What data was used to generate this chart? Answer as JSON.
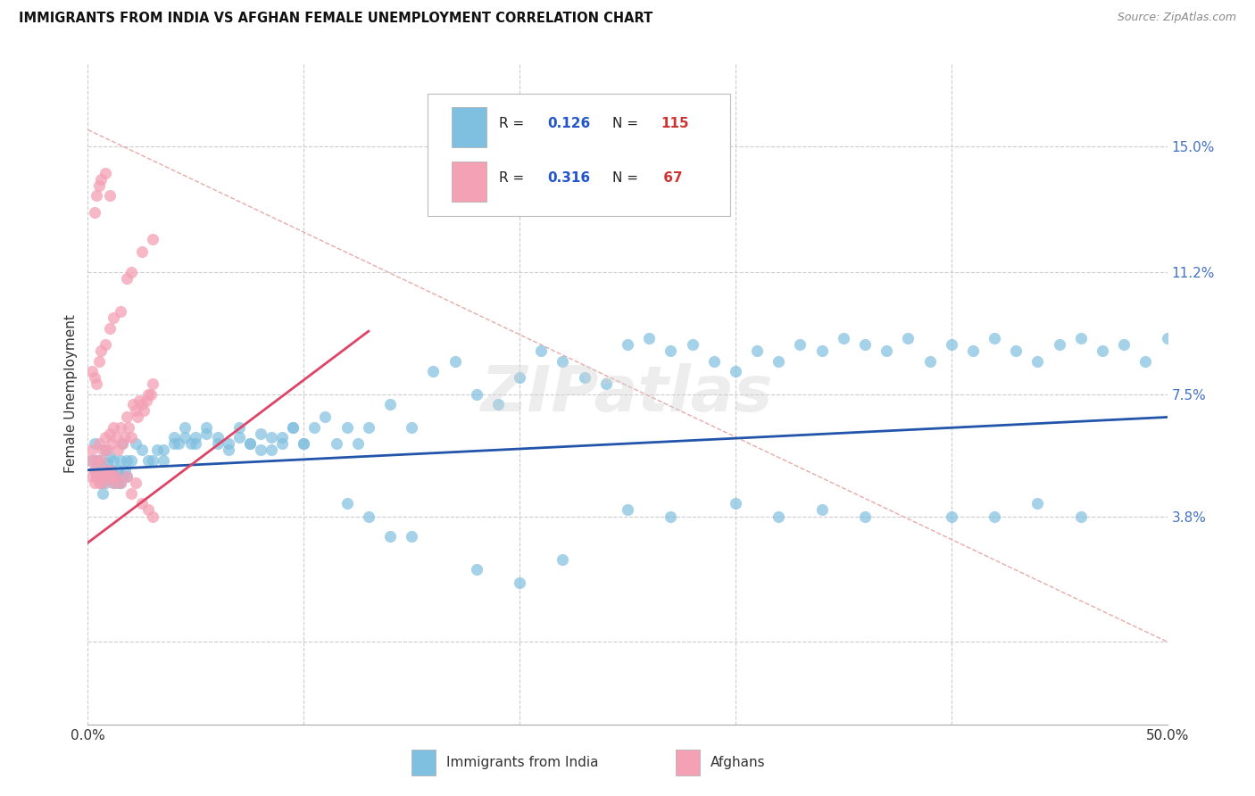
{
  "title": "IMMIGRANTS FROM INDIA VS AFGHAN FEMALE UNEMPLOYMENT CORRELATION CHART",
  "source": "Source: ZipAtlas.com",
  "ylabel": "Female Unemployment",
  "right_yticklabels": [
    "",
    "3.8%",
    "7.5%",
    "11.2%",
    "15.0%"
  ],
  "right_ytick_vals": [
    0.0,
    0.038,
    0.075,
    0.112,
    0.15
  ],
  "xlim": [
    0.0,
    0.5
  ],
  "ylim": [
    -0.025,
    0.175
  ],
  "legend_label1": "Immigrants from India",
  "legend_label2": "Afghans",
  "blue_color": "#7FBFDF",
  "pink_color": "#F4A0B5",
  "blue_line_color": "#2255AA",
  "pink_line_color": "#DD4466",
  "diag_color": "#E8AAAA",
  "trendline_blue": [
    [
      0.0,
      0.052
    ],
    [
      0.5,
      0.068
    ]
  ],
  "trendline_pink": [
    [
      0.0,
      0.03
    ],
    [
      0.13,
      0.094
    ]
  ],
  "diag_line": [
    [
      0.0,
      0.155
    ],
    [
      0.5,
      0.0
    ]
  ],
  "india_x": [
    0.002,
    0.003,
    0.004,
    0.005,
    0.006,
    0.007,
    0.008,
    0.009,
    0.01,
    0.011,
    0.012,
    0.013,
    0.014,
    0.015,
    0.016,
    0.018,
    0.02,
    0.022,
    0.025,
    0.028,
    0.03,
    0.032,
    0.003,
    0.004,
    0.005,
    0.006,
    0.007,
    0.008,
    0.009,
    0.01,
    0.011,
    0.012,
    0.013,
    0.014,
    0.015,
    0.016,
    0.017,
    0.018,
    0.035,
    0.04,
    0.045,
    0.05,
    0.055,
    0.06,
    0.065,
    0.07,
    0.075,
    0.08,
    0.085,
    0.09,
    0.095,
    0.1,
    0.035,
    0.04,
    0.042,
    0.045,
    0.048,
    0.05,
    0.055,
    0.06,
    0.065,
    0.07,
    0.075,
    0.08,
    0.085,
    0.09,
    0.095,
    0.1,
    0.105,
    0.11,
    0.115,
    0.12,
    0.125,
    0.13,
    0.14,
    0.15,
    0.16,
    0.17,
    0.18,
    0.19,
    0.2,
    0.21,
    0.22,
    0.23,
    0.24,
    0.25,
    0.26,
    0.27,
    0.28,
    0.29,
    0.3,
    0.31,
    0.32,
    0.33,
    0.34,
    0.35,
    0.36,
    0.37,
    0.38,
    0.39,
    0.4,
    0.41,
    0.42,
    0.43,
    0.44,
    0.45,
    0.46,
    0.47,
    0.48,
    0.49,
    0.5,
    0.25,
    0.27,
    0.3,
    0.32,
    0.34,
    0.36,
    0.15,
    0.18,
    0.2,
    0.22,
    0.12,
    0.13,
    0.14,
    0.4,
    0.42,
    0.44,
    0.46
  ],
  "india_y": [
    0.055,
    0.052,
    0.05,
    0.055,
    0.05,
    0.053,
    0.058,
    0.054,
    0.056,
    0.052,
    0.055,
    0.05,
    0.048,
    0.055,
    0.06,
    0.055,
    0.055,
    0.06,
    0.058,
    0.055,
    0.055,
    0.058,
    0.06,
    0.055,
    0.05,
    0.048,
    0.045,
    0.048,
    0.05,
    0.052,
    0.05,
    0.048,
    0.05,
    0.052,
    0.048,
    0.05,
    0.052,
    0.05,
    0.058,
    0.06,
    0.062,
    0.06,
    0.063,
    0.06,
    0.058,
    0.062,
    0.06,
    0.063,
    0.058,
    0.062,
    0.065,
    0.06,
    0.055,
    0.062,
    0.06,
    0.065,
    0.06,
    0.062,
    0.065,
    0.062,
    0.06,
    0.065,
    0.06,
    0.058,
    0.062,
    0.06,
    0.065,
    0.06,
    0.065,
    0.068,
    0.06,
    0.065,
    0.06,
    0.065,
    0.072,
    0.065,
    0.082,
    0.085,
    0.075,
    0.072,
    0.08,
    0.088,
    0.085,
    0.08,
    0.078,
    0.09,
    0.092,
    0.088,
    0.09,
    0.085,
    0.082,
    0.088,
    0.085,
    0.09,
    0.088,
    0.092,
    0.09,
    0.088,
    0.092,
    0.085,
    0.09,
    0.088,
    0.092,
    0.088,
    0.085,
    0.09,
    0.092,
    0.088,
    0.09,
    0.085,
    0.092,
    0.04,
    0.038,
    0.042,
    0.038,
    0.04,
    0.038,
    0.032,
    0.022,
    0.018,
    0.025,
    0.042,
    0.038,
    0.032,
    0.038,
    0.038,
    0.042,
    0.038
  ],
  "afghan_x": [
    0.001,
    0.002,
    0.003,
    0.004,
    0.005,
    0.006,
    0.007,
    0.008,
    0.009,
    0.01,
    0.011,
    0.012,
    0.013,
    0.014,
    0.015,
    0.016,
    0.017,
    0.018,
    0.019,
    0.02,
    0.021,
    0.022,
    0.023,
    0.024,
    0.025,
    0.026,
    0.027,
    0.028,
    0.029,
    0.03,
    0.002,
    0.003,
    0.004,
    0.005,
    0.006,
    0.007,
    0.008,
    0.009,
    0.01,
    0.011,
    0.012,
    0.013,
    0.015,
    0.018,
    0.02,
    0.022,
    0.025,
    0.028,
    0.03,
    0.002,
    0.003,
    0.004,
    0.005,
    0.006,
    0.008,
    0.01,
    0.012,
    0.015,
    0.018,
    0.02,
    0.025,
    0.03,
    0.003,
    0.004,
    0.005,
    0.006,
    0.008,
    0.01
  ],
  "afghan_y": [
    0.055,
    0.058,
    0.052,
    0.055,
    0.06,
    0.055,
    0.058,
    0.062,
    0.058,
    0.063,
    0.06,
    0.065,
    0.062,
    0.058,
    0.065,
    0.06,
    0.062,
    0.068,
    0.065,
    0.062,
    0.072,
    0.07,
    0.068,
    0.073,
    0.072,
    0.07,
    0.073,
    0.075,
    0.075,
    0.078,
    0.05,
    0.048,
    0.05,
    0.048,
    0.05,
    0.048,
    0.052,
    0.05,
    0.052,
    0.05,
    0.048,
    0.05,
    0.048,
    0.05,
    0.045,
    0.048,
    0.042,
    0.04,
    0.038,
    0.082,
    0.08,
    0.078,
    0.085,
    0.088,
    0.09,
    0.095,
    0.098,
    0.1,
    0.11,
    0.112,
    0.118,
    0.122,
    0.13,
    0.135,
    0.138,
    0.14,
    0.142,
    0.135
  ]
}
